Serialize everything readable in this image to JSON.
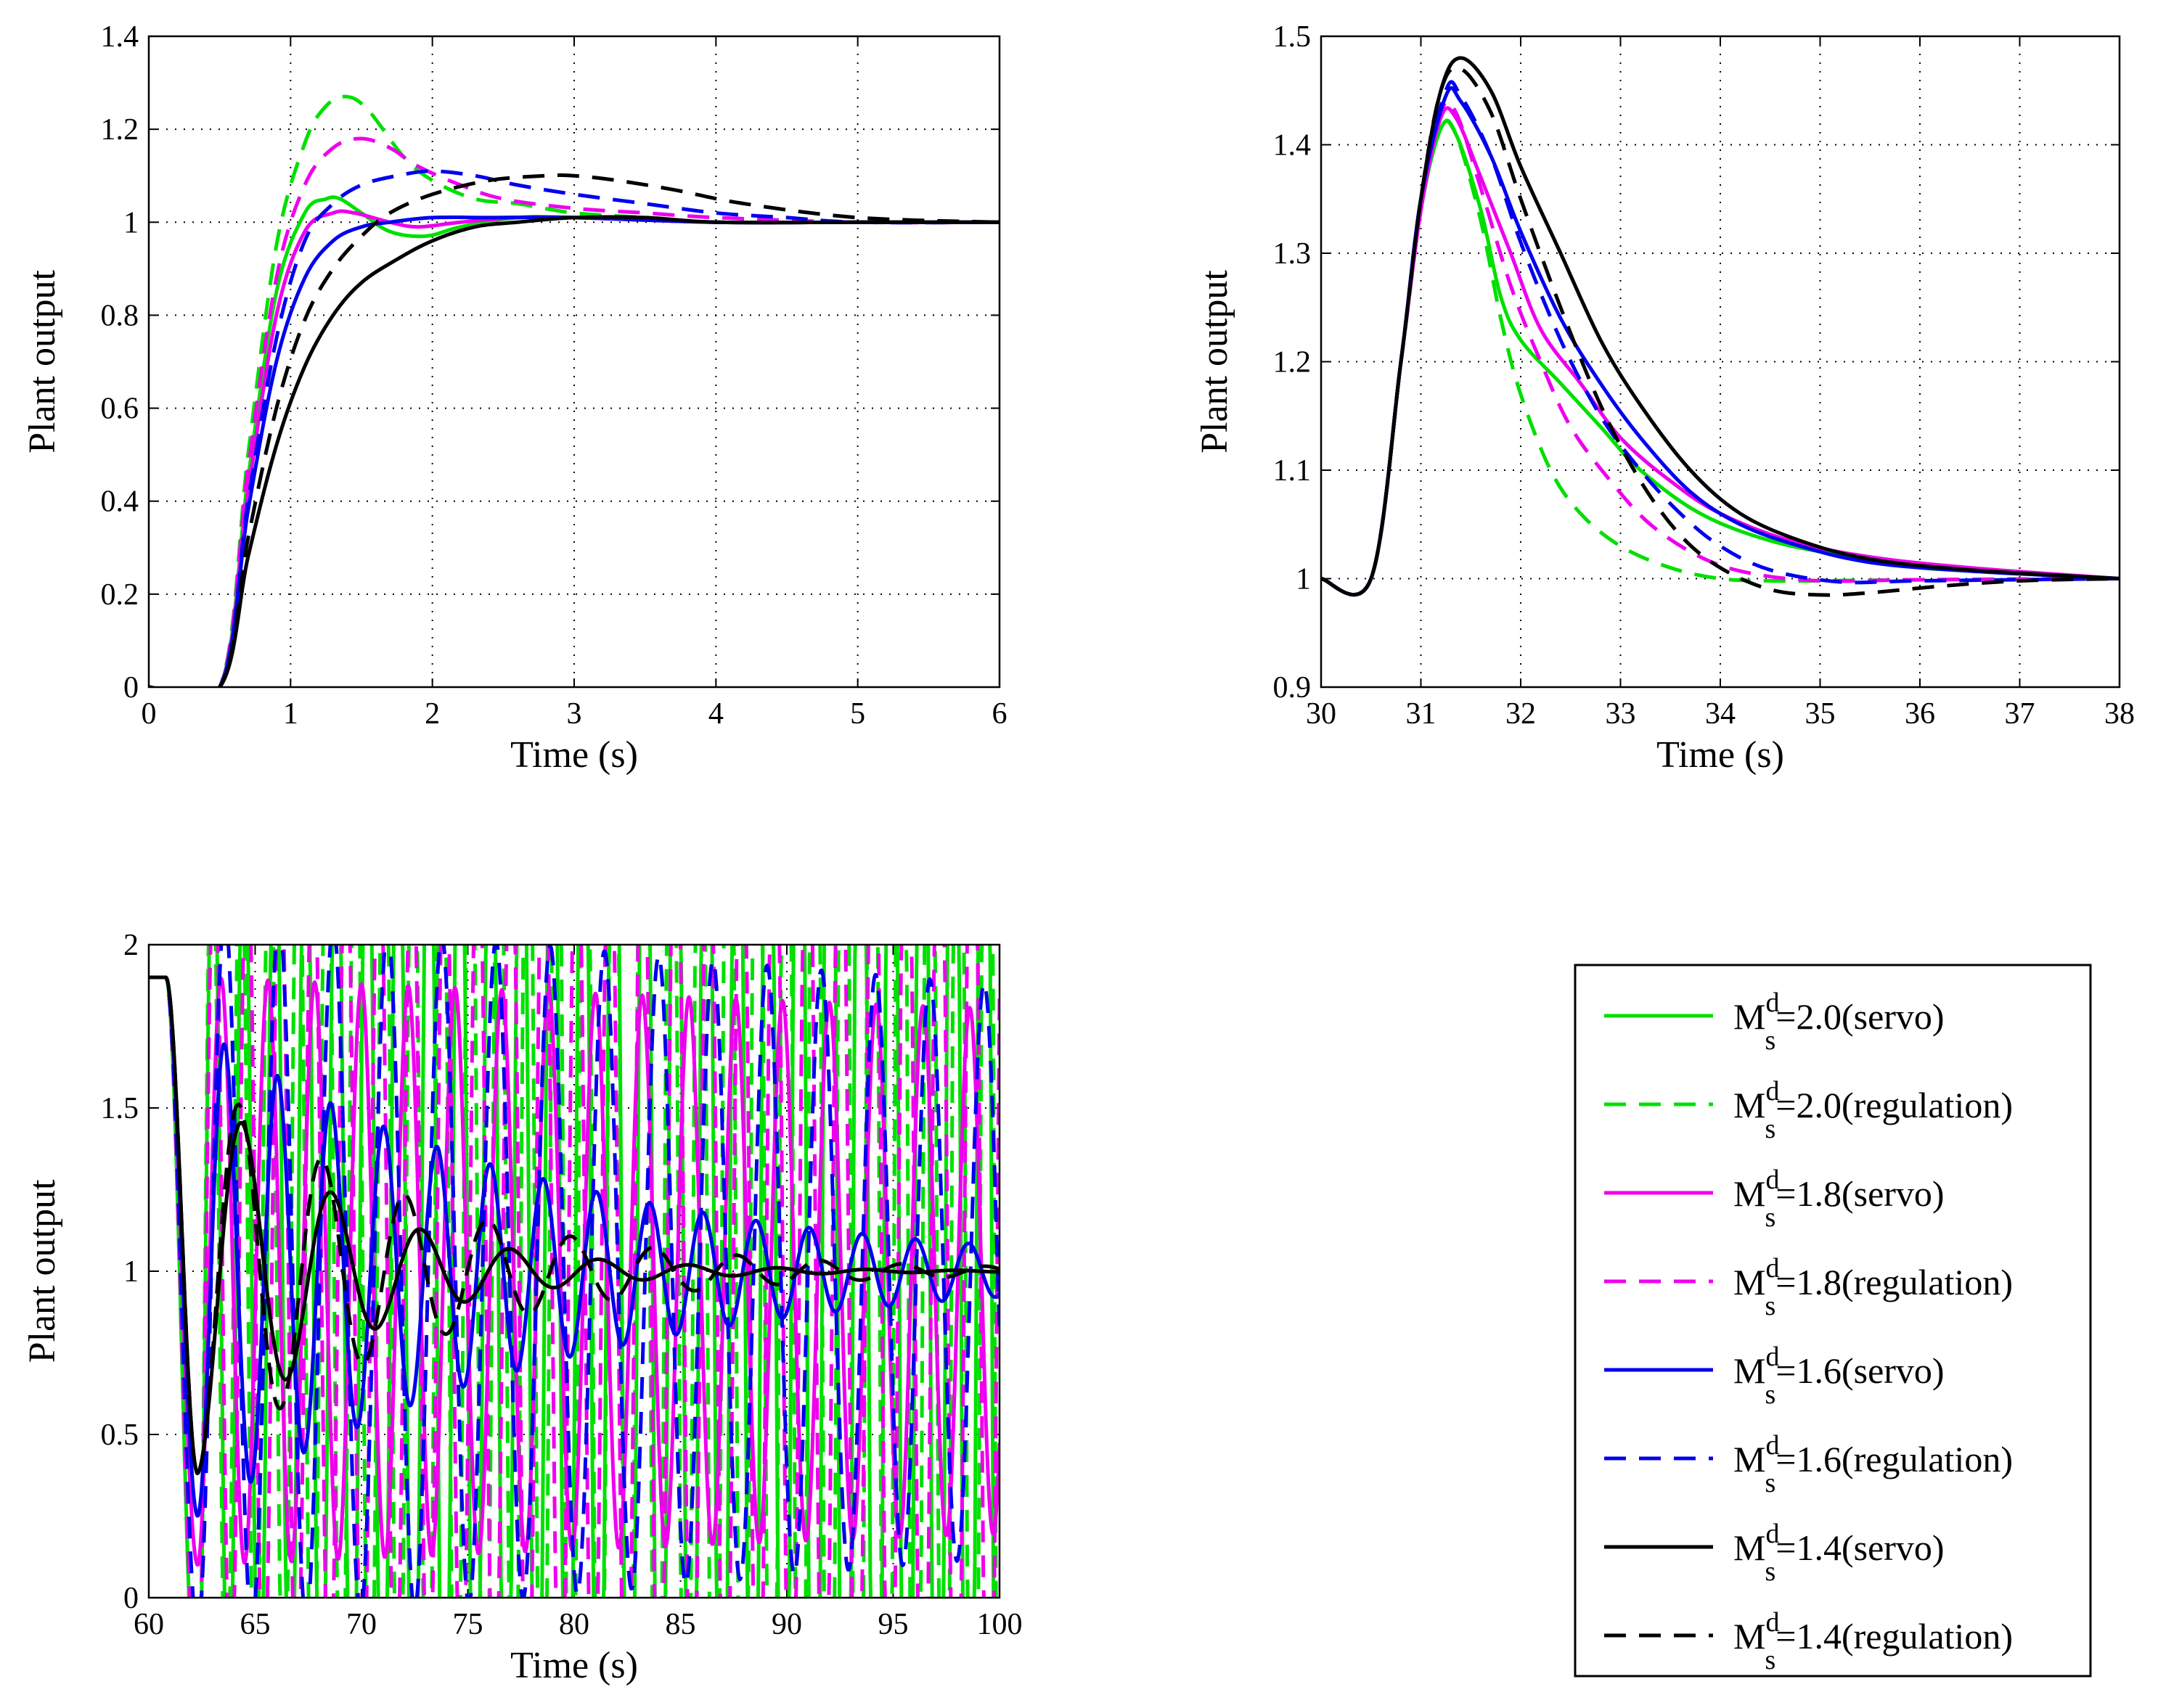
{
  "figure_title": "",
  "chart_data": [
    {
      "id": "top-left",
      "type": "line",
      "title": "",
      "xlabel": "Time (s)",
      "ylabel": "Plant output",
      "xlim": [
        0,
        6
      ],
      "ylim": [
        0,
        1.4
      ],
      "xticks": [
        0,
        1,
        2,
        3,
        4,
        5,
        6
      ],
      "yticks": [
        0,
        0.2,
        0.4,
        0.6,
        0.8,
        1,
        1.2,
        1.4
      ],
      "grid": true,
      "series": [
        {
          "name": "Ms^d=2.0(servo)",
          "color": "#00e000",
          "style": "solid",
          "x": [
            0,
            0.5,
            0.7,
            0.9,
            1.1,
            1.25,
            1.35,
            1.5,
            1.7,
            1.95,
            2.2,
            2.6,
            3,
            4,
            5,
            6
          ],
          "y": [
            0,
            0,
            0.45,
            0.85,
            1.02,
            1.05,
            1.05,
            1.02,
            0.98,
            0.97,
            0.99,
            1.01,
            1.01,
            1.0,
            1.0,
            1.0
          ]
        },
        {
          "name": "Ms^d=2.0(regulation)",
          "color": "#00e000",
          "style": "dashed",
          "x": [
            0,
            0.5,
            0.7,
            0.9,
            1.1,
            1.25,
            1.4,
            1.55,
            1.8,
            2.0,
            2.3,
            2.6,
            3,
            3.5,
            4,
            5,
            6
          ],
          "y": [
            0,
            0,
            0.5,
            0.95,
            1.17,
            1.25,
            1.27,
            1.24,
            1.14,
            1.09,
            1.05,
            1.04,
            1.02,
            1.01,
            1.0,
            1.0,
            1.0
          ]
        },
        {
          "name": "Ms^d=1.8(servo)",
          "color": "#ee00ee",
          "style": "solid",
          "x": [
            0,
            0.5,
            0.7,
            0.9,
            1.1,
            1.3,
            1.45,
            1.7,
            1.9,
            2.2,
            2.6,
            3,
            4,
            5,
            6
          ],
          "y": [
            0,
            0,
            0.42,
            0.8,
            0.98,
            1.02,
            1.02,
            1.0,
            0.99,
            1.0,
            1.01,
            1.01,
            1.0,
            1.0,
            1.0
          ]
        },
        {
          "name": "Ms^d=1.8(regulation)",
          "color": "#ee00ee",
          "style": "dashed",
          "x": [
            0,
            0.5,
            0.7,
            0.9,
            1.1,
            1.3,
            1.5,
            1.7,
            1.9,
            2.2,
            2.5,
            3,
            3.5,
            4,
            5,
            6
          ],
          "y": [
            0,
            0,
            0.47,
            0.88,
            1.08,
            1.16,
            1.18,
            1.16,
            1.12,
            1.08,
            1.05,
            1.03,
            1.02,
            1.01,
            1.0,
            1.0
          ]
        },
        {
          "name": "Ms^d=1.6(servo)",
          "color": "#0000ee",
          "style": "solid",
          "x": [
            0,
            0.5,
            0.7,
            0.9,
            1.1,
            1.3,
            1.5,
            1.7,
            2.0,
            2.4,
            3,
            4,
            5,
            6
          ],
          "y": [
            0,
            0,
            0.38,
            0.7,
            0.88,
            0.96,
            0.99,
            1.0,
            1.01,
            1.01,
            1.01,
            1.0,
            1.0,
            1.0
          ]
        },
        {
          "name": "Ms^d=1.6(regulation)",
          "color": "#0000ee",
          "style": "dashed",
          "x": [
            0,
            0.5,
            0.7,
            0.9,
            1.1,
            1.3,
            1.5,
            1.75,
            2.0,
            2.3,
            2.6,
            3,
            3.5,
            4,
            4.5,
            5,
            6
          ],
          "y": [
            0,
            0,
            0.4,
            0.75,
            0.96,
            1.04,
            1.08,
            1.1,
            1.11,
            1.1,
            1.08,
            1.06,
            1.04,
            1.02,
            1.01,
            1.0,
            1.0
          ]
        },
        {
          "name": "Ms^d=1.4(servo)",
          "color": "#000000",
          "style": "solid",
          "x": [
            0,
            0.5,
            0.7,
            0.9,
            1.1,
            1.3,
            1.5,
            1.75,
            2.0,
            2.3,
            2.6,
            3,
            3.5,
            4,
            5,
            6
          ],
          "y": [
            0,
            0,
            0.28,
            0.52,
            0.69,
            0.8,
            0.87,
            0.92,
            0.96,
            0.99,
            1.0,
            1.01,
            1.01,
            1.0,
            1.0,
            1.0
          ]
        },
        {
          "name": "Ms^d=1.4(regulation)",
          "color": "#000000",
          "style": "dashed",
          "x": [
            0,
            0.5,
            0.7,
            0.9,
            1.1,
            1.3,
            1.5,
            1.7,
            2.0,
            2.4,
            2.8,
            3.0,
            3.3,
            3.7,
            4.2,
            5,
            6
          ],
          "y": [
            0,
            0,
            0.32,
            0.6,
            0.79,
            0.9,
            0.97,
            1.02,
            1.06,
            1.09,
            1.1,
            1.1,
            1.09,
            1.07,
            1.04,
            1.01,
            1.0
          ]
        }
      ]
    },
    {
      "id": "top-right",
      "type": "line",
      "title": "",
      "xlabel": "Time (s)",
      "ylabel": "Plant output",
      "xlim": [
        30,
        38
      ],
      "ylim": [
        0.9,
        1.5
      ],
      "xticks": [
        30,
        31,
        32,
        33,
        34,
        35,
        36,
        37,
        38
      ],
      "yticks": [
        0.9,
        1,
        1.1,
        1.2,
        1.3,
        1.4,
        1.5
      ],
      "grid": true,
      "series": [
        {
          "name": "Ms^d=2.0(servo)",
          "color": "#00e000",
          "style": "solid",
          "x": [
            30,
            30.5,
            30.8,
            31.0,
            31.2,
            31.35,
            31.6,
            31.8,
            32.0,
            32.4,
            32.8,
            33.2,
            33.8,
            34.5,
            35.3,
            36,
            37,
            38
          ],
          "y": [
            1.0,
            1.0,
            1.2,
            1.34,
            1.415,
            1.41,
            1.34,
            1.26,
            1.22,
            1.18,
            1.14,
            1.1,
            1.06,
            1.035,
            1.02,
            1.01,
            1.005,
            1.0
          ]
        },
        {
          "name": "Ms^d=2.0(regulation)",
          "color": "#00e000",
          "style": "dashed",
          "x": [
            30,
            30.5,
            30.8,
            31.0,
            31.2,
            31.35,
            31.6,
            31.8,
            32.0,
            32.3,
            32.6,
            33.0,
            33.5,
            34.0,
            34.5,
            35,
            36,
            38
          ],
          "y": [
            1.0,
            1.0,
            1.2,
            1.34,
            1.415,
            1.41,
            1.33,
            1.24,
            1.17,
            1.1,
            1.06,
            1.03,
            1.01,
            1.0,
            0.998,
            0.998,
            0.999,
            1.0
          ]
        },
        {
          "name": "Ms^d=1.8(servo)",
          "color": "#ee00ee",
          "style": "solid",
          "x": [
            30,
            30.5,
            30.8,
            31.0,
            31.2,
            31.35,
            31.6,
            31.9,
            32.2,
            32.6,
            33.0,
            33.5,
            34.0,
            34.7,
            35.5,
            36.5,
            38
          ],
          "y": [
            1.0,
            1.0,
            1.2,
            1.34,
            1.425,
            1.425,
            1.37,
            1.3,
            1.23,
            1.18,
            1.13,
            1.09,
            1.06,
            1.035,
            1.02,
            1.01,
            1.0
          ]
        },
        {
          "name": "Ms^d=1.8(regulation)",
          "color": "#ee00ee",
          "style": "dashed",
          "x": [
            30,
            30.5,
            30.8,
            31.0,
            31.2,
            31.35,
            31.6,
            31.9,
            32.2,
            32.5,
            32.9,
            33.3,
            33.8,
            34.3,
            35,
            36,
            38
          ],
          "y": [
            1.0,
            1.0,
            1.2,
            1.34,
            1.43,
            1.43,
            1.36,
            1.27,
            1.2,
            1.14,
            1.09,
            1.05,
            1.02,
            1.005,
            0.998,
            0.999,
            1.0
          ]
        },
        {
          "name": "Ms^d=1.6(servo)",
          "color": "#0000ee",
          "style": "solid",
          "x": [
            30,
            30.5,
            30.8,
            31.0,
            31.25,
            31.4,
            31.7,
            32.0,
            32.4,
            32.8,
            33.2,
            33.7,
            34.2,
            34.8,
            35.5,
            36.5,
            38
          ],
          "y": [
            1.0,
            1.0,
            1.2,
            1.35,
            1.445,
            1.44,
            1.39,
            1.32,
            1.24,
            1.18,
            1.13,
            1.08,
            1.05,
            1.03,
            1.015,
            1.007,
            1.0
          ]
        },
        {
          "name": "Ms^d=1.6(regulation)",
          "color": "#0000ee",
          "style": "dashed",
          "x": [
            30,
            30.5,
            30.8,
            31.0,
            31.25,
            31.4,
            31.7,
            32.0,
            32.4,
            32.8,
            33.2,
            33.6,
            34.0,
            34.5,
            35.2,
            36,
            38
          ],
          "y": [
            1.0,
            1.0,
            1.2,
            1.35,
            1.45,
            1.445,
            1.39,
            1.31,
            1.22,
            1.15,
            1.1,
            1.06,
            1.03,
            1.008,
            0.997,
            0.998,
            1.0
          ]
        },
        {
          "name": "Ms^d=1.4(servo)",
          "color": "#000000",
          "style": "solid",
          "x": [
            30,
            30.5,
            30.8,
            31.0,
            31.2,
            31.4,
            31.7,
            32.0,
            32.4,
            32.8,
            33.2,
            33.7,
            34.2,
            34.8,
            35.5,
            36.5,
            38
          ],
          "y": [
            1.0,
            1.0,
            1.2,
            1.35,
            1.45,
            1.48,
            1.45,
            1.38,
            1.3,
            1.22,
            1.16,
            1.1,
            1.06,
            1.035,
            1.018,
            1.008,
            1.0
          ]
        },
        {
          "name": "Ms^d=1.4(regulation)",
          "color": "#000000",
          "style": "dashed",
          "x": [
            30,
            30.5,
            30.8,
            31.0,
            31.2,
            31.4,
            31.7,
            32.0,
            32.4,
            32.8,
            33.2,
            33.6,
            34.0,
            34.5,
            35.0,
            35.5,
            36.2,
            37,
            38
          ],
          "y": [
            1.0,
            1.0,
            1.2,
            1.35,
            1.45,
            1.47,
            1.43,
            1.35,
            1.25,
            1.16,
            1.09,
            1.04,
            1.01,
            0.99,
            0.985,
            0.987,
            0.993,
            0.998,
            1.0
          ]
        }
      ]
    },
    {
      "id": "bottom-left",
      "type": "line",
      "title": "",
      "xlabel": "Time (s)",
      "ylabel": "Plant output",
      "xlim": [
        60,
        100
      ],
      "ylim": [
        0,
        2
      ],
      "xticks": [
        60,
        65,
        70,
        75,
        80,
        85,
        90,
        95,
        100
      ],
      "yticks": [
        0,
        0.5,
        1,
        1.5,
        2
      ],
      "grid": true,
      "start": {
        "t0": 60,
        "t1": 60.8,
        "hold": 1.9,
        "dip_t": 62.3
      },
      "series": [
        {
          "name": "Ms^d=2.0(servo)",
          "color": "#00e000",
          "style": "solid",
          "amp0": 1.4,
          "decay": -0.02,
          "period": 1.45,
          "phase": 0.0,
          "lw": 5
        },
        {
          "name": "Ms^d=2.0(regulation)",
          "color": "#00e000",
          "style": "dashed",
          "amp0": 1.4,
          "decay": -0.02,
          "period": 1.35,
          "phase": 0.4,
          "lw": 5
        },
        {
          "name": "Ms^d=1.8(servo)",
          "color": "#ee00ee",
          "style": "solid",
          "amp0": 0.9,
          "decay": 0.003,
          "period": 2.2,
          "phase": 0.2,
          "lw": 5
        },
        {
          "name": "Ms^d=1.8(regulation)",
          "color": "#ee00ee",
          "style": "dashed",
          "amp0": 1.3,
          "decay": -0.01,
          "period": 1.55,
          "phase": 0.6,
          "lw": 5
        },
        {
          "name": "Ms^d=1.6(servo)",
          "color": "#0000ee",
          "style": "solid",
          "amp0": 0.75,
          "decay": 0.06,
          "period": 2.5,
          "phase": 0.3,
          "lw": 5
        },
        {
          "name": "Ms^d=1.6(regulation)",
          "color": "#0000ee",
          "style": "dashed",
          "amp0": 1.1,
          "decay": 0.006,
          "period": 2.55,
          "phase": 0.7,
          "lw": 5
        },
        {
          "name": "Ms^d=1.4(servo)",
          "color": "#000000",
          "style": "solid",
          "amp0": 0.62,
          "decay": 0.15,
          "period": 4.2,
          "phase": 0.0,
          "lw": 5
        },
        {
          "name": "Ms^d=1.4(regulation)",
          "color": "#000000",
          "style": "dashed",
          "amp0": 0.62,
          "decay": 0.1,
          "period": 3.9,
          "phase": 0.5,
          "lw": 5
        }
      ]
    }
  ],
  "legend": {
    "placement": "bottom-right",
    "entries": [
      {
        "base": "M",
        "sup": "d",
        "sub": "s",
        "text": "=2.0(servo)",
        "color": "#00e000",
        "style": "solid"
      },
      {
        "base": "M",
        "sup": "d",
        "sub": "s",
        "text": "=2.0(regulation)",
        "color": "#00e000",
        "style": "dashed"
      },
      {
        "base": "M",
        "sup": "d",
        "sub": "s",
        "text": "=1.8(servo)",
        "color": "#ee00ee",
        "style": "solid"
      },
      {
        "base": "M",
        "sup": "d",
        "sub": "s",
        "text": "=1.8(regulation)",
        "color": "#ee00ee",
        "style": "dashed"
      },
      {
        "base": "M",
        "sup": "d",
        "sub": "s",
        "text": "=1.6(servo)",
        "color": "#0000ee",
        "style": "solid"
      },
      {
        "base": "M",
        "sup": "d",
        "sub": "s",
        "text": "=1.6(regulation)",
        "color": "#0000ee",
        "style": "dashed"
      },
      {
        "base": "M",
        "sup": "d",
        "sub": "s",
        "text": "=1.4(servo)",
        "color": "#000000",
        "style": "solid"
      },
      {
        "base": "M",
        "sup": "d",
        "sub": "s",
        "text": "=1.4(regulation)",
        "color": "#000000",
        "style": "dashed"
      }
    ]
  }
}
